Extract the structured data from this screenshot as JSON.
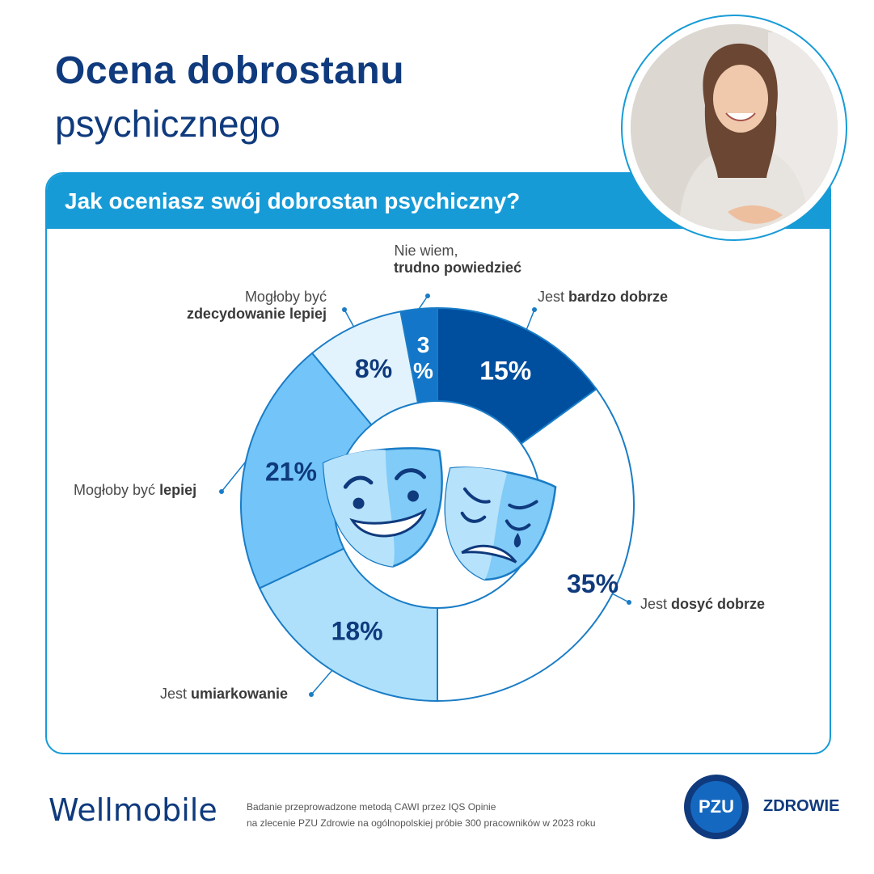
{
  "title": {
    "line1": "Ocena dobrostanu",
    "line2": "psychicznego"
  },
  "question": "Jak oceniasz swój dobrostan psychiczny?",
  "chart_data": {
    "type": "pie",
    "variant": "donut",
    "start": "top, clockwise",
    "slices": [
      {
        "name_regular": "Jest ",
        "name_bold": "bardzo dobrze",
        "value": 15,
        "label": "15%",
        "color": "#004e9e"
      },
      {
        "name_regular": "Jest ",
        "name_bold": "dosyć dobrze",
        "value": 35,
        "label": "35%",
        "color": "#ffffff"
      },
      {
        "name_regular": "Jest ",
        "name_bold": "umiarkowanie",
        "value": 18,
        "label": "18%",
        "color": "#aee0fb"
      },
      {
        "name_regular": "Mogłoby być ",
        "name_bold": "lepiej",
        "value": 21,
        "label": "21%",
        "color": "#73c4f8"
      },
      {
        "name_regular": "Mogłoby być",
        "name_bold": "zdecydowanie lepiej",
        "value": 8,
        "label": "8%",
        "color": "#e2f3fd"
      },
      {
        "name_regular": "Nie wiem,",
        "name_bold": "trudno powiedzieć",
        "value": 3,
        "label": "3%",
        "color": "#1376c8"
      }
    ]
  },
  "footer": {
    "brand": "Wellmobile",
    "note_line1": "Badanie przeprowadzone metodą CAWI przez IQS Opinie",
    "note_line2": "na zlecenie PZU Zdrowie na ogólnopolskiej próbie 300 pracowników w 2023 roku",
    "logo_text": "PZU",
    "logo_label": "ZDROWIE"
  },
  "colors": {
    "brand_dark": "#0f3a7d",
    "accent": "#179bd7"
  },
  "icons": [
    "theater-masks-icon",
    "smiling-woman-photo"
  ]
}
